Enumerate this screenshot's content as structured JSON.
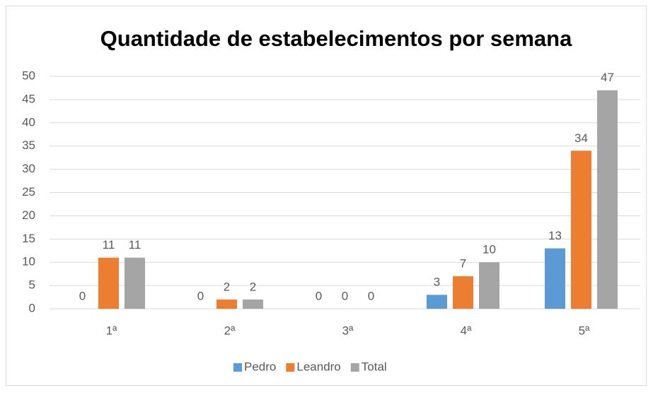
{
  "chart_data": {
    "type": "bar",
    "title": "Quantidade de estabelecimentos por semana",
    "categories": [
      "1ª",
      "2ª",
      "3ª",
      "4ª",
      "5ª"
    ],
    "series": [
      {
        "name": "Pedro",
        "color": "#5b9bd5",
        "values": [
          0,
          0,
          0,
          3,
          13
        ]
      },
      {
        "name": "Leandro",
        "color": "#ed7d31",
        "values": [
          11,
          2,
          0,
          7,
          34
        ]
      },
      {
        "name": "Total",
        "color": "#a5a5a5",
        "values": [
          11,
          2,
          0,
          10,
          47
        ]
      }
    ],
    "ylim": [
      0,
      50
    ],
    "yticks": [
      0,
      5,
      10,
      15,
      20,
      25,
      30,
      35,
      40,
      45,
      50
    ],
    "grid": true,
    "legend": "bottom"
  }
}
